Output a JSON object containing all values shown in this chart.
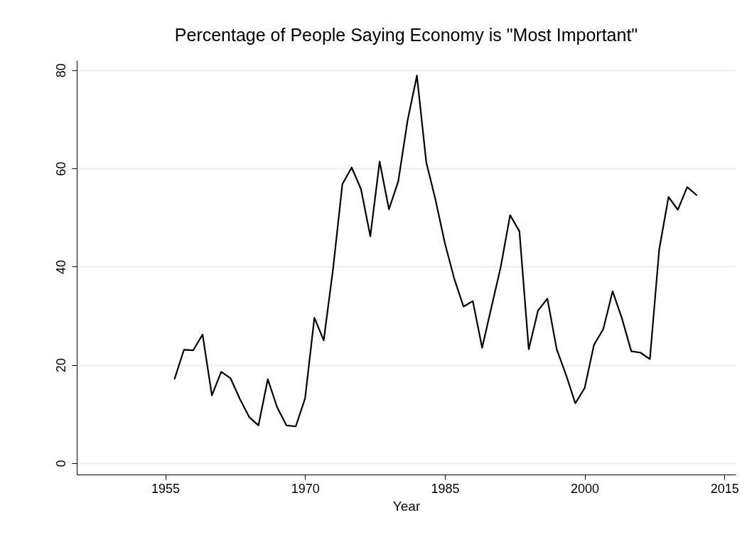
{
  "chart_data": {
    "type": "line",
    "title": "Percentage of People Saying Economy is \"Most Important\"",
    "xlabel": "Year",
    "x": [
      1956,
      1957,
      1958,
      1959,
      1960,
      1961,
      1962,
      1963,
      1964,
      1965,
      1966,
      1967,
      1968,
      1969,
      1970,
      1971,
      1972,
      1973,
      1974,
      1975,
      1976,
      1977,
      1978,
      1979,
      1980,
      1981,
      1982,
      1983,
      1984,
      1985,
      1986,
      1987,
      1988,
      1989,
      1990,
      1991,
      1992,
      1993,
      1994,
      1995,
      1996,
      1997,
      1998,
      1999,
      2000,
      2001,
      2002,
      2003,
      2004,
      2005,
      2006,
      2007,
      2008,
      2009,
      2010,
      2011,
      2012
    ],
    "series": [
      {
        "color": "#000000",
        "values": [
          17.2,
          23.1,
          23.0,
          26.2,
          13.8,
          18.6,
          17.3,
          13.1,
          9.4,
          7.7,
          17.1,
          11.4,
          7.7,
          7.5,
          13.2,
          29.6,
          25.0,
          39.5,
          56.8,
          60.2,
          55.8,
          46.2,
          61.4,
          51.7,
          57.4,
          69.8,
          78.9,
          61.3,
          53.6,
          44.8,
          37.6,
          31.9,
          33.0,
          23.5,
          31.8,
          40.0,
          50.5,
          47.2,
          23.2,
          31.1,
          33.5,
          23.2,
          18.0,
          12.2,
          15.3,
          24.1,
          27.3,
          35.0,
          29.5,
          22.8,
          22.5,
          21.2,
          43.5,
          54.2,
          51.6,
          56.2,
          54.6
        ]
      }
    ],
    "xlim": [
      1945.5,
      2016.2
    ],
    "xticks": [
      1955,
      1970,
      1985,
      2000,
      2015
    ],
    "ylim": [
      -2.3,
      82
    ],
    "yticks": [
      0,
      20,
      40,
      60,
      80
    ],
    "grid": "y",
    "marker": "none",
    "line_style": "solid"
  }
}
